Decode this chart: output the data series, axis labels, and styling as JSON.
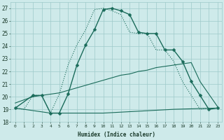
{
  "xlabel": "Humidex (Indice chaleur)",
  "bg_color": "#ceeaea",
  "grid_color": "#9ecaca",
  "line_color": "#1a6b5a",
  "xlim": [
    -0.5,
    23.5
  ],
  "ylim": [
    18.0,
    27.5
  ],
  "xticks": [
    0,
    1,
    2,
    3,
    4,
    5,
    6,
    7,
    8,
    9,
    10,
    11,
    12,
    13,
    14,
    15,
    16,
    17,
    18,
    19,
    20,
    21,
    22,
    23
  ],
  "yticks": [
    18,
    19,
    20,
    21,
    22,
    23,
    24,
    25,
    26,
    27
  ],
  "series": [
    {
      "x": [
        0,
        2,
        3,
        4,
        5,
        6,
        7,
        8,
        9,
        10,
        11,
        12,
        13,
        14,
        15,
        16,
        17,
        18,
        19,
        20,
        21,
        22,
        23
      ],
      "y": [
        19.1,
        20.1,
        20.1,
        18.7,
        18.7,
        20.2,
        22.5,
        24.1,
        25.3,
        26.9,
        27.0,
        26.8,
        26.5,
        25.1,
        25.0,
        25.0,
        23.7,
        23.7,
        22.8,
        21.2,
        20.1,
        19.0,
        19.1
      ],
      "marker": "D",
      "markersize": 2.5,
      "linewidth": 1.0
    },
    {
      "x": [
        0,
        1,
        2,
        3,
        4,
        5,
        6,
        7,
        8,
        9,
        10,
        11,
        12,
        13,
        14,
        15,
        16,
        17,
        18,
        19,
        20,
        21,
        22,
        23
      ],
      "y": [
        19.1,
        19.0,
        20.1,
        20.1,
        18.7,
        20.2,
        22.5,
        24.1,
        25.3,
        26.9,
        27.0,
        26.8,
        26.5,
        25.1,
        25.0,
        25.0,
        23.7,
        23.7,
        22.8,
        21.2,
        20.1,
        19.0,
        19.1,
        null
      ],
      "marker": null,
      "markersize": 0,
      "linewidth": 0.8,
      "linestyle": ":"
    },
    {
      "x": [
        0,
        4,
        10,
        18,
        23
      ],
      "y": [
        19.1,
        18.7,
        18.7,
        19.0,
        19.1
      ],
      "marker": null,
      "markersize": 0,
      "linewidth": 0.8,
      "linestyle": "-"
    },
    {
      "x": [
        0,
        2,
        3,
        4,
        5,
        6,
        7,
        8,
        9,
        10,
        11,
        12,
        13,
        14,
        15,
        16,
        17,
        18,
        19,
        20,
        21,
        22,
        23
      ],
      "y": [
        19.5,
        20.0,
        20.1,
        20.2,
        20.3,
        20.5,
        20.7,
        20.9,
        21.1,
        21.3,
        21.5,
        21.7,
        21.8,
        22.0,
        22.1,
        22.3,
        22.4,
        22.5,
        22.6,
        22.7,
        21.2,
        20.2,
        19.2
      ],
      "marker": null,
      "markersize": 0,
      "linewidth": 0.8,
      "linestyle": "-"
    }
  ]
}
